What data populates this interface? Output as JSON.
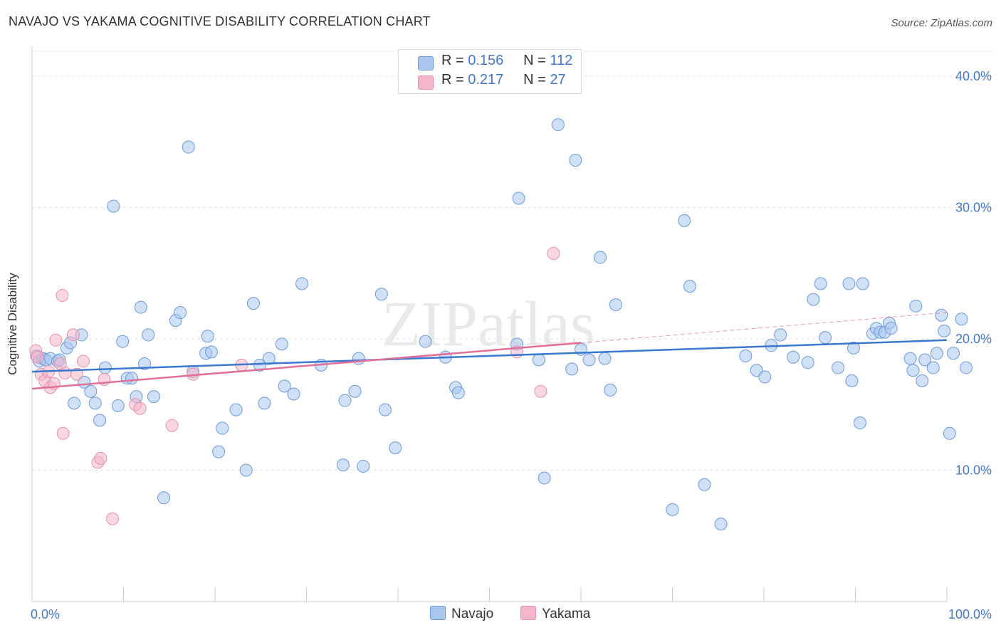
{
  "title": "NAVAJO VS YAKAMA COGNITIVE DISABILITY CORRELATION CHART",
  "source": "Source: ZipAtlas.com",
  "watermark": "ZIPatlas",
  "legend_top": {
    "rows": [
      {
        "r_label": "R =",
        "r_value": "0.156",
        "n_label": "N =",
        "n_value": "112",
        "color": "#a9c7ee"
      },
      {
        "r_label": "R =",
        "r_value": "0.217",
        "n_label": "N =",
        "n_value": "27",
        "color": "#f4b6c9"
      }
    ]
  },
  "chart_data": {
    "type": "scatter",
    "title": "NAVAJO VS YAKAMA COGNITIVE DISABILITY CORRELATION CHART",
    "xlabel": "",
    "ylabel": "Cognitive Disability",
    "xlim": [
      0,
      100
    ],
    "ylim": [
      0,
      42
    ],
    "x_tick_labels": [
      "0.0%",
      "100.0%"
    ],
    "y_ticks": [
      10,
      20,
      30,
      40
    ],
    "y_tick_labels": [
      "10.0%",
      "20.0%",
      "30.0%",
      "40.0%"
    ],
    "grid": true,
    "legend_position": "bottom",
    "series": [
      {
        "name": "Navajo",
        "color": "#a9c7ee",
        "stroke": "#6b9ad8",
        "trend_color": "#3a78d0",
        "trend": {
          "x0": 0,
          "y0": 17.5,
          "x1": 100,
          "y1": 19.9
        },
        "points": [
          [
            0.5,
            18.7
          ],
          [
            0.8,
            18.3
          ],
          [
            1.2,
            18.5
          ],
          [
            1.5,
            18.4
          ],
          [
            2.0,
            18.5
          ],
          [
            2.8,
            18.3
          ],
          [
            3.0,
            18.4
          ],
          [
            3.8,
            19.3
          ],
          [
            4.2,
            19.7
          ],
          [
            4.6,
            15.1
          ],
          [
            5.4,
            20.3
          ],
          [
            5.7,
            16.7
          ],
          [
            6.4,
            16.0
          ],
          [
            6.9,
            15.1
          ],
          [
            7.4,
            13.8
          ],
          [
            8.0,
            17.8
          ],
          [
            8.9,
            30.1
          ],
          [
            9.4,
            14.9
          ],
          [
            9.9,
            19.8
          ],
          [
            10.4,
            17.0
          ],
          [
            10.9,
            17.0
          ],
          [
            11.4,
            15.6
          ],
          [
            11.9,
            22.4
          ],
          [
            12.3,
            18.1
          ],
          [
            12.7,
            20.3
          ],
          [
            13.3,
            15.6
          ],
          [
            14.4,
            7.9
          ],
          [
            15.7,
            21.4
          ],
          [
            16.2,
            22.0
          ],
          [
            17.1,
            34.6
          ],
          [
            17.6,
            17.5
          ],
          [
            19.0,
            18.9
          ],
          [
            19.2,
            20.2
          ],
          [
            19.6,
            19.0
          ],
          [
            20.4,
            11.4
          ],
          [
            20.8,
            13.2
          ],
          [
            22.3,
            14.6
          ],
          [
            23.4,
            10.0
          ],
          [
            24.2,
            22.7
          ],
          [
            24.9,
            18.0
          ],
          [
            25.4,
            15.1
          ],
          [
            25.9,
            18.5
          ],
          [
            27.3,
            19.6
          ],
          [
            27.6,
            16.4
          ],
          [
            28.6,
            15.8
          ],
          [
            29.5,
            24.2
          ],
          [
            31.6,
            18.0
          ],
          [
            34.0,
            10.4
          ],
          [
            34.2,
            15.3
          ],
          [
            35.3,
            16.0
          ],
          [
            35.7,
            18.5
          ],
          [
            36.2,
            10.3
          ],
          [
            38.2,
            23.4
          ],
          [
            38.6,
            14.6
          ],
          [
            39.7,
            11.7
          ],
          [
            43.0,
            19.8
          ],
          [
            45.2,
            18.6
          ],
          [
            46.3,
            16.3
          ],
          [
            46.6,
            15.9
          ],
          [
            53.2,
            30.7
          ],
          [
            53.0,
            19.6
          ],
          [
            55.4,
            18.4
          ],
          [
            56.0,
            9.4
          ],
          [
            57.5,
            36.3
          ],
          [
            59.0,
            17.7
          ],
          [
            59.4,
            33.6
          ],
          [
            60.0,
            19.2
          ],
          [
            60.9,
            18.4
          ],
          [
            62.1,
            26.2
          ],
          [
            62.6,
            18.5
          ],
          [
            63.2,
            16.1
          ],
          [
            63.8,
            22.6
          ],
          [
            70.0,
            7.0
          ],
          [
            71.3,
            29.0
          ],
          [
            71.9,
            24.0
          ],
          [
            73.5,
            8.9
          ],
          [
            75.3,
            5.9
          ],
          [
            78.0,
            18.7
          ],
          [
            79.2,
            17.6
          ],
          [
            80.1,
            17.1
          ],
          [
            80.8,
            19.5
          ],
          [
            81.8,
            20.3
          ],
          [
            83.2,
            18.6
          ],
          [
            84.8,
            18.2
          ],
          [
            85.4,
            23.0
          ],
          [
            86.2,
            24.2
          ],
          [
            86.7,
            20.1
          ],
          [
            88.1,
            17.8
          ],
          [
            89.3,
            24.2
          ],
          [
            89.6,
            16.8
          ],
          [
            89.8,
            19.3
          ],
          [
            90.5,
            13.6
          ],
          [
            90.8,
            24.2
          ],
          [
            91.9,
            20.4
          ],
          [
            92.3,
            20.8
          ],
          [
            92.7,
            20.5
          ],
          [
            93.2,
            20.5
          ],
          [
            93.7,
            21.2
          ],
          [
            93.9,
            20.8
          ],
          [
            96.0,
            18.5
          ],
          [
            96.3,
            17.6
          ],
          [
            96.6,
            22.5
          ],
          [
            97.3,
            16.8
          ],
          [
            97.6,
            18.4
          ],
          [
            98.5,
            17.8
          ],
          [
            98.9,
            18.9
          ],
          [
            99.4,
            21.8
          ],
          [
            99.7,
            20.6
          ],
          [
            100.3,
            12.8
          ],
          [
            100.7,
            18.9
          ],
          [
            101.6,
            21.5
          ],
          [
            102.1,
            17.8
          ]
        ]
      },
      {
        "name": "Yakama",
        "color": "#f4b6c9",
        "stroke": "#e890aa",
        "trend_color": "#e0709a",
        "trend": {
          "x0": 0,
          "y0": 16.2,
          "x1": 60,
          "y1": 19.7
        },
        "trend_dashed_extension": {
          "x0": 60,
          "y0": 19.7,
          "x1": 100,
          "y1": 22.0
        },
        "points": [
          [
            0.4,
            19.1
          ],
          [
            0.6,
            18.6
          ],
          [
            1.0,
            17.3
          ],
          [
            1.4,
            16.8
          ],
          [
            1.8,
            17.5
          ],
          [
            2.0,
            16.3
          ],
          [
            2.4,
            16.6
          ],
          [
            2.6,
            19.9
          ],
          [
            3.1,
            18.1
          ],
          [
            3.3,
            23.3
          ],
          [
            3.4,
            12.8
          ],
          [
            3.6,
            17.4
          ],
          [
            4.5,
            20.3
          ],
          [
            4.9,
            17.3
          ],
          [
            5.6,
            18.3
          ],
          [
            7.2,
            10.6
          ],
          [
            7.5,
            10.9
          ],
          [
            7.9,
            16.9
          ],
          [
            8.8,
            6.3
          ],
          [
            11.3,
            15.0
          ],
          [
            11.8,
            14.7
          ],
          [
            15.3,
            13.4
          ],
          [
            17.6,
            17.3
          ],
          [
            22.9,
            18.0
          ],
          [
            53.0,
            19.0
          ],
          [
            55.6,
            16.0
          ],
          [
            57.0,
            26.5
          ]
        ]
      }
    ]
  }
}
